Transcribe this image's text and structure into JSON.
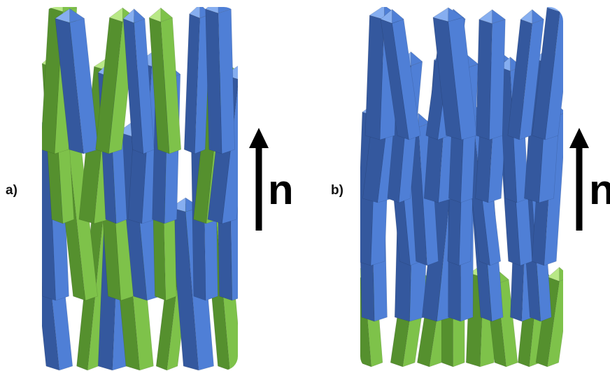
{
  "panels": [
    {
      "label": "a)",
      "axis_label": "n"
    },
    {
      "label": "b)",
      "axis_label": "n"
    }
  ],
  "colors": {
    "blue": "#4f7fd6",
    "blue_light": "#86aef0",
    "blue_dark": "#34589e",
    "green": "#7ec24a",
    "green_light": "#b8e886",
    "green_dark": "#55902e",
    "arrow": "#000000"
  }
}
